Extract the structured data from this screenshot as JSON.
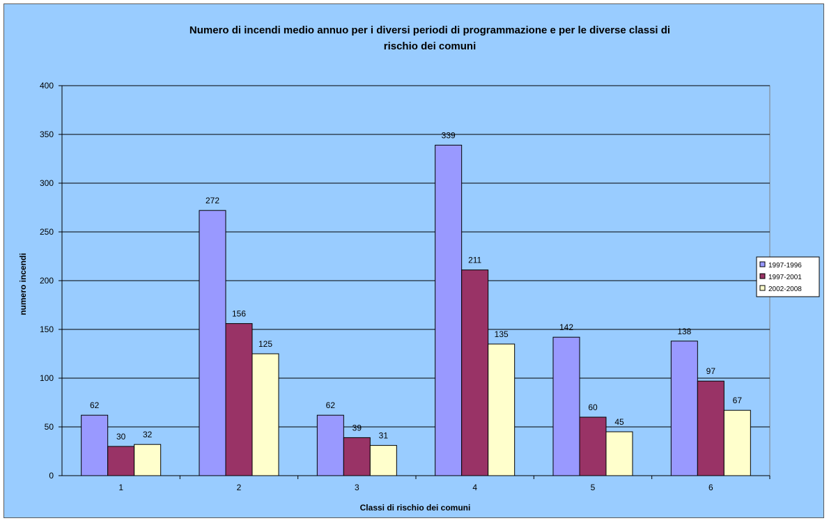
{
  "chart_data": {
    "type": "bar",
    "title_lines": [
      "Numero di incendi medio annuo per i diversi periodi di programmazione e per le diverse classi di",
      "rischio dei comuni"
    ],
    "xlabel": "Classi di rischio dei comuni",
    "ylabel": "numero incendi",
    "categories": [
      "1",
      "2",
      "3",
      "4",
      "5",
      "6"
    ],
    "ylim": [
      0,
      400
    ],
    "yticks": [
      "0",
      "50",
      "100",
      "150",
      "200",
      "250",
      "300",
      "350",
      "400"
    ],
    "grid": true,
    "legend_position": "right",
    "series": [
      {
        "name": "1997-1996",
        "color": "#9999ff",
        "values": [
          62,
          272,
          62,
          339,
          142,
          138
        ]
      },
      {
        "name": "1997-2001",
        "color": "#993366",
        "values": [
          30,
          156,
          39,
          211,
          60,
          97
        ]
      },
      {
        "name": "2002-2008",
        "color": "#ffffcc",
        "values": [
          32,
          125,
          31,
          135,
          45,
          67
        ]
      }
    ]
  }
}
